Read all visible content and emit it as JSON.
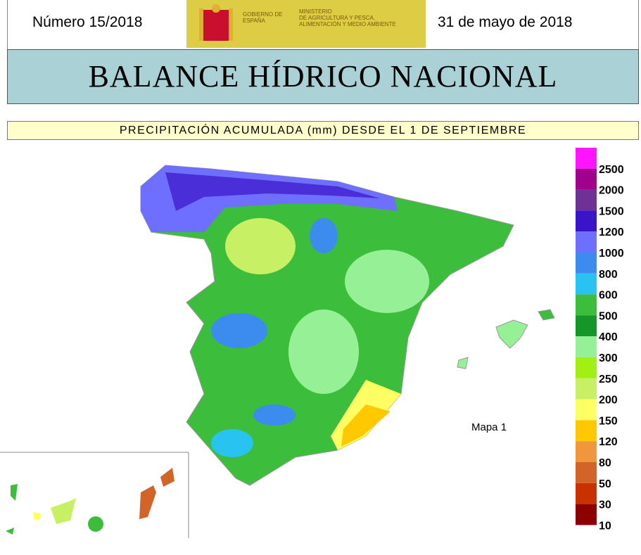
{
  "header": {
    "issue": "Número 15/2018",
    "logo_government": "GOBIERNO DE ESPAÑA",
    "logo_ministry_1": "MINISTERIO",
    "logo_ministry_2": "DE AGRICULTURA Y PESCA,",
    "logo_ministry_3": "ALIMENTACIÓN Y MEDIO AMBIENTE",
    "date": "31 de mayo de 2018"
  },
  "title": "BALANCE HÍDRICO NACIONAL",
  "subtitle": "PRECIPITACIÓN ACUMULADA (mm) DESDE EL 1 DE SEPTIEMBRE",
  "map": {
    "label": "Mapa 1",
    "legend": {
      "labels": [
        "2500",
        "2000",
        "1500",
        "1200",
        "1000",
        "800",
        "600",
        "500",
        "400",
        "300",
        "250",
        "200",
        "150",
        "120",
        "80",
        "50",
        "30",
        "10"
      ],
      "colors": [
        "#ff14ff",
        "#a0008c",
        "#6e3296",
        "#3a14c8",
        "#6e6eff",
        "#3c8cf0",
        "#28c3f0",
        "#3cbe3c",
        "#149628",
        "#96f096",
        "#a0f014",
        "#c8f064",
        "#ffff64",
        "#ffc800",
        "#f0963c",
        "#d26428",
        "#c83200",
        "#8c0000"
      ]
    }
  }
}
